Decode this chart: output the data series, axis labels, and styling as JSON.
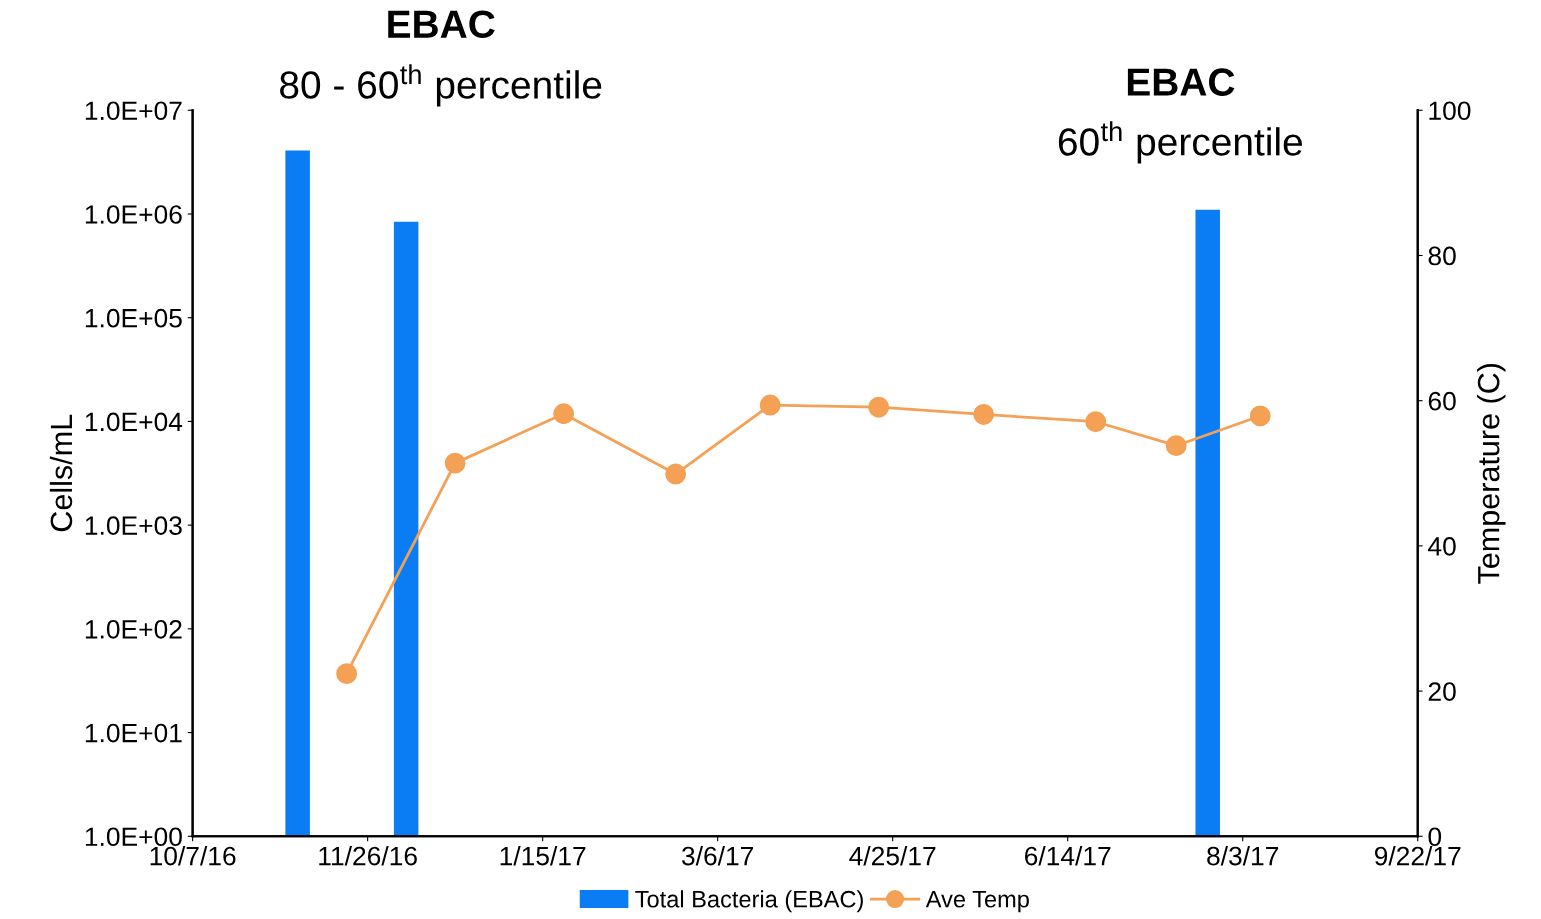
{
  "chart_data": {
    "type": "bar",
    "ylabel": "Cells/mL",
    "y2label": "Temperature (C)",
    "annotations": [
      "EBAC",
      "80 - 60$^{th}$ percentile",
      "EBAC",
      "60$^{th}$ percentile"
    ],
    "series": [
      {
        "name": "Total Bacteria (EBAC)",
        "color": "#0a7df5",
        "x": [
          "2016-11-06",
          "2016-12-07",
          "2017-07-24"
        ],
        "values": [
          4100000,
          840000,
          1100000
        ]
      },
      {
        "name": "Ave Temp",
        "type": "line",
        "axis": "y2",
        "color": "#f4a055",
        "marker": "circle",
        "line_style": "solid",
        "x": [
          "2016-11-20",
          "2016-12-21",
          "2017-01-21",
          "2017-02-22",
          "2017-03-21",
          "2017-04-21",
          "2017-05-21",
          "2017-06-22",
          "2017-07-15",
          "2017-08-08"
        ],
        "values": [
          22.4,
          51.4,
          58.2,
          49.9,
          59.4,
          59.1,
          58.1,
          57.1,
          53.8,
          57.9
        ]
      }
    ],
    "xlim": [
      "2016-10-07",
      "2017-09-22"
    ],
    "xticks": [
      {
        "value": "2016-10-07",
        "label": "10/7/16"
      },
      {
        "value": "2016-11-26",
        "label": "11/26/16"
      },
      {
        "value": "2017-01-15",
        "label": "1/15/17"
      },
      {
        "value": "2017-03-06",
        "label": "3/6/17"
      },
      {
        "value": "2017-04-25",
        "label": "4/25/17"
      },
      {
        "value": "2017-06-14",
        "label": "6/14/17"
      },
      {
        "value": "2017-08-03",
        "label": "8/3/17"
      },
      {
        "value": "2017-09-22",
        "label": "9/22/17"
      }
    ],
    "log": "y",
    "ylim": [
      1,
      10000000
    ],
    "yticks": [
      {
        "value": 1,
        "label": "1.0E+00"
      },
      {
        "value": 10,
        "label": "1.0E+01"
      },
      {
        "value": 100,
        "label": "1.0E+02"
      },
      {
        "value": 1000,
        "label": "1.0E+03"
      },
      {
        "value": 10000,
        "label": "1.0E+04"
      },
      {
        "value": 100000,
        "label": "1.0E+05"
      },
      {
        "value": 1000000,
        "label": "1.0E+06"
      },
      {
        "value": 10000000,
        "label": "1.0E+07"
      }
    ],
    "y2lim": [
      0,
      100
    ],
    "y2ticks": [
      0,
      20,
      40,
      60,
      80,
      100
    ],
    "grid": false,
    "legend": "bottom"
  }
}
